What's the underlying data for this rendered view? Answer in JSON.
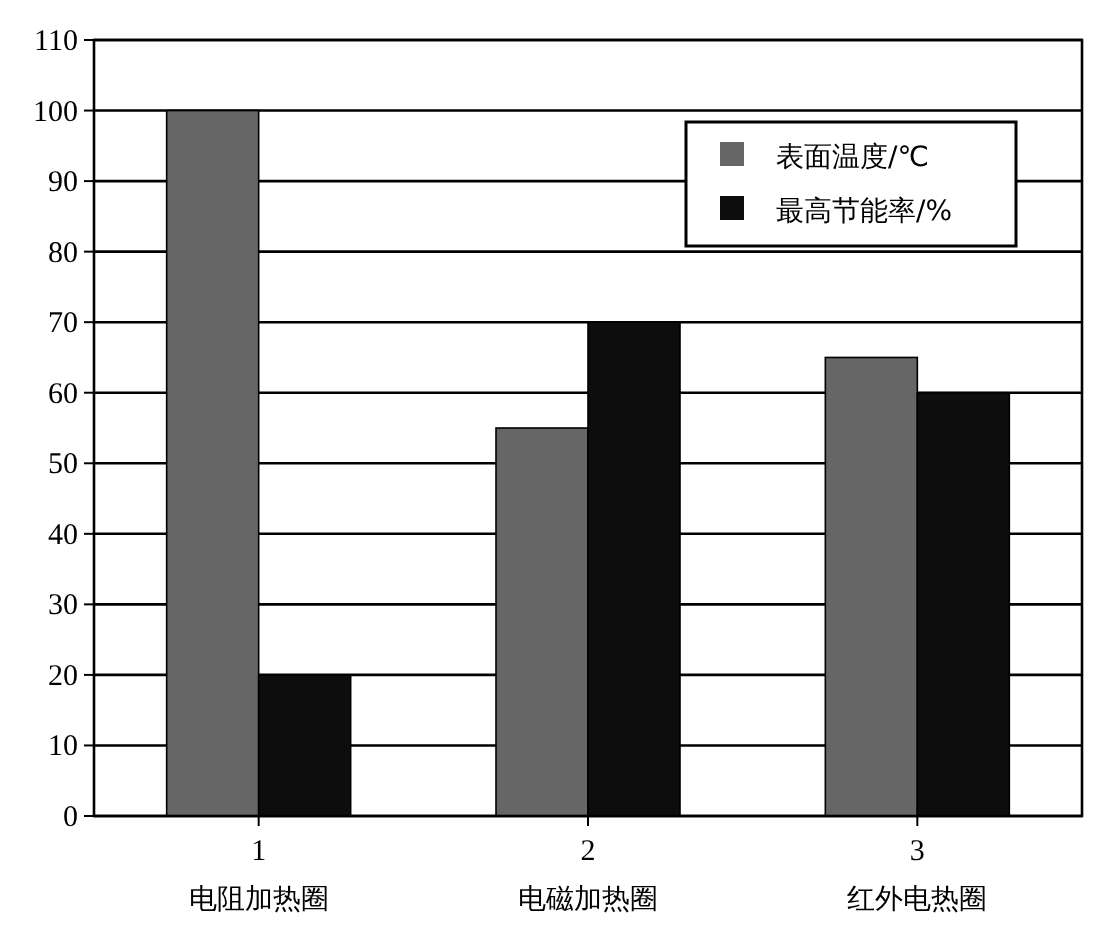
{
  "chart_data": {
    "type": "bar",
    "categories": [
      "1\n电阻加热圈",
      "2\n电磁加热圈",
      "3\n红外电热圈"
    ],
    "series": [
      {
        "name": "表面温度/℃",
        "color": "#666666",
        "values": [
          100,
          55,
          65
        ]
      },
      {
        "name": "最高节能率/%",
        "color": "#0d0d0d",
        "values": [
          20,
          70,
          60
        ]
      }
    ],
    "ylim": [
      0,
      110
    ],
    "yticks": [
      0,
      10,
      20,
      30,
      40,
      50,
      60,
      70,
      80,
      90,
      100,
      110
    ],
    "grid": "y",
    "legend": "top right"
  }
}
